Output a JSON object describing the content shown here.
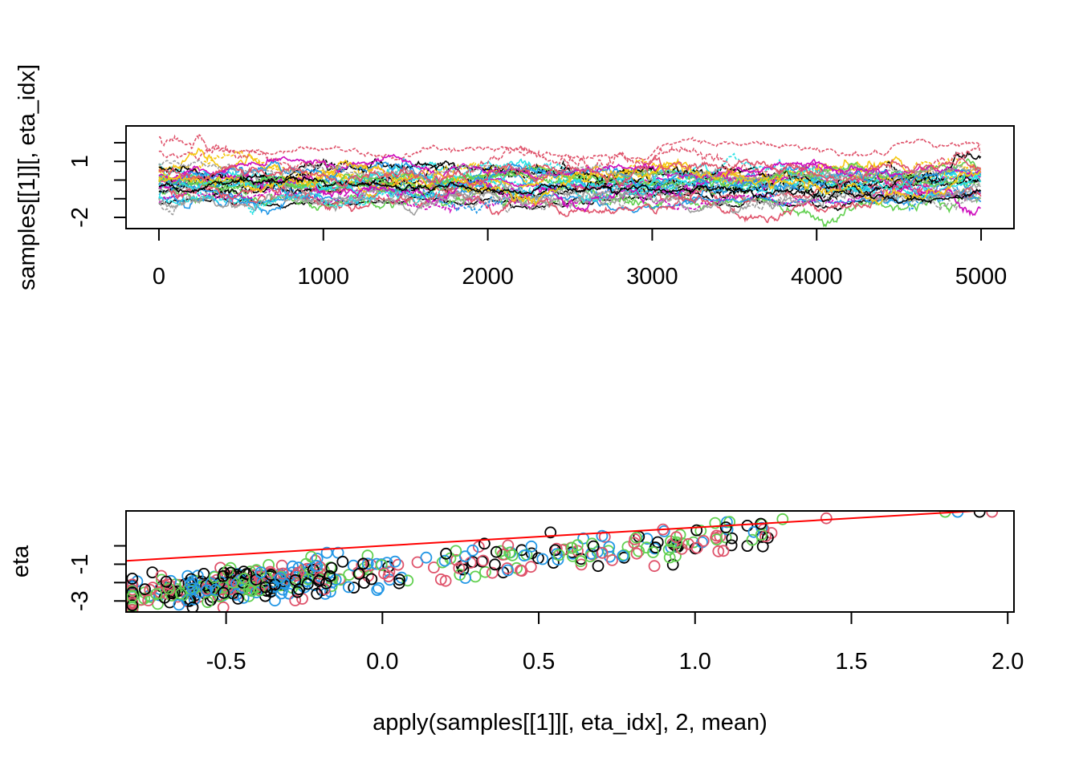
{
  "chart_data": [
    {
      "type": "line",
      "title": "",
      "xlabel": "",
      "ylabel": "samples[[1]][, eta_idx]",
      "xlim": [
        -200,
        5200
      ],
      "ylim": [
        -2.6,
        2.9
      ],
      "x_ticks": [
        "0",
        "1000",
        "2000",
        "3000",
        "4000",
        "5000"
      ],
      "x_tick_values": [
        0,
        1000,
        2000,
        3000,
        4000,
        5000
      ],
      "y_ticks": [
        {
          "value": 2.0,
          "label": ""
        },
        {
          "value": 1.0,
          "label": "1"
        },
        {
          "value": 0.0,
          "label": ""
        },
        {
          "value": -1.0,
          "label": ""
        },
        {
          "value": -2.0,
          "label": "-2"
        }
      ],
      "grid": false,
      "legend": "none",
      "n_iterations": 5000,
      "series_colors": [
        "#000000",
        "#DF536B",
        "#61D04F",
        "#2297E6",
        "#28E2E5",
        "#CD0BBC",
        "#F5C710",
        "#9E9E9E"
      ],
      "trace_summary": {
        "typical_range": [
          -1.9,
          1.4
        ],
        "upper_trace_center": 1.6,
        "lower_bound": -2.2
      }
    },
    {
      "type": "scatter",
      "title": "",
      "xlabel": "apply(samples[[1]][, eta_idx], 2, mean)",
      "ylabel": "eta",
      "xlim": [
        -0.82,
        2.02
      ],
      "ylim": [
        -3.6,
        1.9
      ],
      "x_ticks": [
        "-0.5",
        "0.0",
        "0.5",
        "1.0",
        "1.5",
        "2.0"
      ],
      "x_tick_values": [
        -0.5,
        0.0,
        0.5,
        1.0,
        1.5,
        2.0
      ],
      "y_ticks": [
        {
          "value": 0.0,
          "label": ""
        },
        {
          "value": -1.0,
          "label": "-1"
        },
        {
          "value": -2.0,
          "label": ""
        },
        {
          "value": -3.0,
          "label": "-3"
        }
      ],
      "grid": false,
      "legend": "none",
      "series_colors": [
        "#000000",
        "#DF536B",
        "#61D04F",
        "#2297E6"
      ],
      "reference_line": {
        "intercept": 0.0,
        "slope": 1.0,
        "color": "#FF0000"
      },
      "notable_points": [
        {
          "x": 1.8,
          "y": 1.85,
          "series": 2
        },
        {
          "x": 1.84,
          "y": 1.85,
          "series": 3
        },
        {
          "x": 1.91,
          "y": 1.85,
          "series": 0
        },
        {
          "x": 1.95,
          "y": 1.85,
          "series": 1
        },
        {
          "x": 1.42,
          "y": 1.5,
          "series": 1
        },
        {
          "x": 1.28,
          "y": 1.45,
          "series": 2
        },
        {
          "x": 1.21,
          "y": 1.2,
          "series": 0
        },
        {
          "x": 0.69,
          "y": -1.1,
          "series": 0
        },
        {
          "x": 0.87,
          "y": -1.1,
          "series": 1
        }
      ]
    }
  ]
}
